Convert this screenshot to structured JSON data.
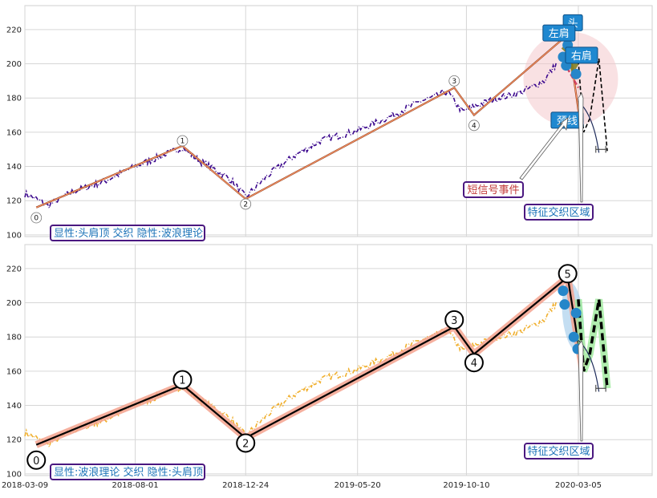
{
  "chart_data": [
    {
      "type": "line",
      "panel": "top",
      "legend_text": "显性:头肩顶 交织 隐性:波浪理论",
      "ylim": [
        99,
        234
      ],
      "yticks": [
        100,
        120,
        140,
        160,
        180,
        200,
        220
      ],
      "grid": true,
      "x_date_range": [
        "2018-03-09",
        "2020-06-10"
      ],
      "series": [
        {
          "role": "price",
          "color": "#3d0a8e",
          "style": "dash-dot",
          "x": [
            "2018-03-09",
            "2018-03-24",
            "2018-04-08",
            "2018-05-10",
            "2018-06-20",
            "2018-08-01",
            "2018-09-10",
            "2018-10-02",
            "2018-10-25",
            "2018-11-15",
            "2018-12-05",
            "2018-12-24",
            "2019-01-20",
            "2019-02-25",
            "2019-04-01",
            "2019-05-20",
            "2019-07-01",
            "2019-08-10",
            "2019-09-01",
            "2019-09-15",
            "2019-09-24",
            "2019-10-05",
            "2019-10-20",
            "2019-11-20",
            "2019-12-20",
            "2020-01-20",
            "2020-02-05"
          ],
          "values": [
            124,
            121,
            117,
            125,
            131,
            140,
            147,
            151,
            143,
            138,
            132,
            122,
            134,
            146,
            155,
            161,
            169,
            178,
            181,
            184,
            178,
            172,
            175,
            180,
            183,
            190,
            200
          ]
        },
        {
          "role": "hidden wave (thin)",
          "color": "#ff9a6a",
          "x": [
            "2018-03-24",
            "2018-10-02",
            "2018-12-24",
            "2019-09-24",
            "2019-10-20",
            "2020-02-20",
            "2020-03-10"
          ],
          "values": [
            116,
            152,
            121,
            186,
            170,
            217,
            157
          ]
        },
        {
          "role": "head-and-shoulders",
          "color": "#7a7a1a",
          "x": [
            "2020-02-14",
            "2020-02-20",
            "2020-02-27",
            "2020-03-05"
          ],
          "values": [
            208,
            211,
            197,
            202
          ]
        },
        {
          "role": "neckline",
          "color": "#d04060",
          "style": "dashed",
          "x": [
            "2020-02-10",
            "2020-03-05"
          ],
          "values": [
            205,
            186
          ]
        },
        {
          "role": "projection",
          "color": "#000000",
          "style": "dashed",
          "x": [
            "2020-03-05",
            "2020-03-12",
            "2020-03-20",
            "2020-04-01",
            "2020-04-12"
          ],
          "values": [
            202,
            160,
            168,
            203,
            149
          ]
        }
      ],
      "wave_points": [
        {
          "label": "0",
          "x": "2018-03-24",
          "value": 110
        },
        {
          "label": "1",
          "x": "2018-10-02",
          "value": 155
        },
        {
          "label": "2",
          "x": "2018-12-24",
          "value": 118
        },
        {
          "label": "3",
          "x": "2019-09-24",
          "value": 190
        },
        {
          "label": "4",
          "x": "2019-10-20",
          "value": 164
        }
      ],
      "shoulder_points": [
        {
          "x": "2020-02-14",
          "value": 204
        },
        {
          "x": "2020-02-18",
          "value": 199
        },
        {
          "x": "2020-02-20",
          "value": 211
        },
        {
          "x": "2020-03-02",
          "value": 194
        }
      ],
      "annotations": [
        {
          "text": "头",
          "x": "2020-03-02",
          "value": 224
        },
        {
          "text": "左肩",
          "x": "2020-02-17",
          "value": 218
        },
        {
          "text": "右肩",
          "x": "2020-03-05",
          "value": 205
        },
        {
          "text": "颈线",
          "x": "2020-03-05",
          "value": 167
        },
        {
          "text": "短信号事件",
          "x": "2019-08-15",
          "value": 126
        },
        {
          "text": "特征交织区域",
          "x": "2020-03-05",
          "value": 113
        }
      ]
    },
    {
      "type": "line",
      "panel": "bottom",
      "legend_text": "显性:波浪理论 交织 隐性:头肩顶",
      "ylim": [
        99,
        234
      ],
      "yticks": [
        100,
        120,
        140,
        160,
        180,
        200,
        220
      ],
      "xticks": [
        "2018-03-09",
        "2018-08-01",
        "2018-12-24",
        "2019-05-20",
        "2019-10-10",
        "2020-03-05"
      ],
      "grid": true,
      "series": [
        {
          "role": "price",
          "color": "#f0b030",
          "style": "dash-dot",
          "x": [
            "2018-03-09",
            "2018-03-24",
            "2018-04-08",
            "2018-05-10",
            "2018-06-20",
            "2018-08-01",
            "2018-09-10",
            "2018-10-02",
            "2018-10-25",
            "2018-11-15",
            "2018-12-05",
            "2018-12-24",
            "2019-01-20",
            "2019-02-25",
            "2019-04-01",
            "2019-05-20",
            "2019-07-01",
            "2019-08-10",
            "2019-09-01",
            "2019-09-15",
            "2019-09-24",
            "2019-10-05",
            "2019-10-20",
            "2019-11-20",
            "2019-12-20",
            "2020-01-20",
            "2020-02-05"
          ],
          "values": [
            124,
            121,
            117,
            125,
            131,
            140,
            147,
            151,
            143,
            138,
            132,
            122,
            134,
            146,
            155,
            161,
            169,
            178,
            181,
            184,
            178,
            172,
            175,
            180,
            183,
            190,
            200
          ]
        },
        {
          "role": "wave",
          "color": "#000000",
          "x": [
            "2018-03-24",
            "2018-10-02",
            "2018-12-24",
            "2019-09-24",
            "2019-10-20",
            "2020-02-20",
            "2020-03-10"
          ],
          "values": [
            117,
            152,
            121,
            186,
            170,
            215,
            162
          ]
        },
        {
          "role": "projection",
          "color": "#000000",
          "style": "dashed",
          "x": [
            "2020-03-05",
            "2020-03-12",
            "2020-03-20",
            "2020-04-01",
            "2020-04-12"
          ],
          "values": [
            202,
            160,
            170,
            202,
            150
          ]
        }
      ],
      "wave_points": [
        {
          "label": "0",
          "x": "2018-03-24",
          "value": 108
        },
        {
          "label": "1",
          "x": "2018-10-02",
          "value": 155
        },
        {
          "label": "2",
          "x": "2018-12-24",
          "value": 118
        },
        {
          "label": "3",
          "x": "2019-09-24",
          "value": 190
        },
        {
          "label": "4",
          "x": "2019-10-20",
          "value": 165
        },
        {
          "label": "5",
          "x": "2020-02-20",
          "value": 217
        }
      ],
      "shoulder_points": [
        {
          "x": "2020-02-14",
          "value": 207
        },
        {
          "x": "2020-02-16",
          "value": 199
        },
        {
          "x": "2020-03-02",
          "value": 194
        },
        {
          "x": "2020-02-28",
          "value": 180
        },
        {
          "x": "2020-03-04",
          "value": 173
        }
      ],
      "annotations": [
        {
          "text": "特征交织区域",
          "x": "2020-03-05",
          "value": 113
        }
      ]
    }
  ]
}
